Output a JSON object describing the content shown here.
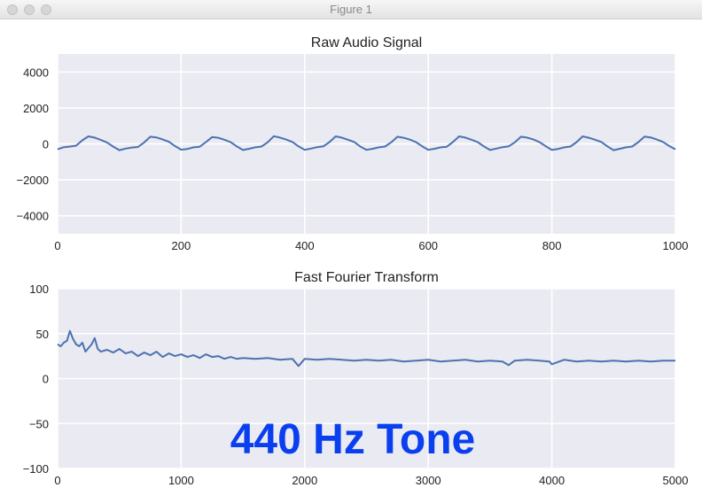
{
  "window": {
    "title": "Figure 1"
  },
  "overlay_text": "440 Hz Tone",
  "colors": {
    "line": "#4c72b0",
    "axes_bg": "#eaeaf2",
    "grid": "#ffffff",
    "overlay": "#0a3ff0"
  },
  "chart_data": [
    {
      "type": "line",
      "title": "Raw Audio Signal",
      "xlim": [
        0,
        1000
      ],
      "ylim": [
        -5000,
        5000
      ],
      "xticks": [
        0,
        200,
        400,
        600,
        800,
        1000
      ],
      "yticks": [
        4000,
        2000,
        0,
        -2000,
        -4000
      ],
      "xtick_labels": [
        "0",
        "200",
        "400",
        "600",
        "800",
        "1000"
      ],
      "ytick_labels": [
        "4000",
        "2000",
        "0",
        "−2000",
        "−4000"
      ],
      "grid": true,
      "series": [
        {
          "x": [
            0,
            10,
            20,
            30,
            40,
            50,
            60,
            70,
            80,
            90,
            100,
            110,
            120,
            130,
            140,
            150,
            160,
            170,
            180,
            190,
            200,
            210,
            220,
            230,
            240,
            250,
            260,
            270,
            280,
            290,
            300,
            310,
            320,
            330,
            340,
            350,
            360,
            370,
            380,
            390,
            400,
            410,
            420,
            430,
            440,
            450,
            460,
            470,
            480,
            490,
            500,
            510,
            520,
            530,
            540,
            550,
            560,
            570,
            580,
            590,
            600,
            610,
            620,
            630,
            640,
            650,
            660,
            670,
            680,
            690,
            700,
            710,
            720,
            730,
            740,
            750,
            760,
            770,
            780,
            790,
            800,
            810,
            820,
            830,
            840,
            850,
            860,
            870,
            880,
            890,
            900,
            910,
            920,
            930,
            940,
            950,
            960,
            970,
            980,
            990,
            1000
          ],
          "y": [
            -300,
            -180,
            -150,
            -100,
            200,
            420,
            350,
            220,
            80,
            -150,
            -350,
            -260,
            -200,
            -170,
            80,
            400,
            360,
            250,
            120,
            -120,
            -320,
            -280,
            -190,
            -160,
            100,
            380,
            340,
            230,
            100,
            -140,
            -340,
            -270,
            -190,
            -150,
            90,
            430,
            350,
            240,
            110,
            -140,
            -330,
            -260,
            -180,
            -140,
            100,
            420,
            350,
            230,
            110,
            -150,
            -330,
            -270,
            -190,
            -150,
            90,
            400,
            340,
            240,
            100,
            -130,
            -330,
            -270,
            -190,
            -160,
            110,
            420,
            350,
            230,
            100,
            -140,
            -340,
            -260,
            -180,
            -140,
            90,
            400,
            350,
            250,
            100,
            -130,
            -330,
            -280,
            -190,
            -150,
            100,
            420,
            340,
            230,
            110,
            -140,
            -350,
            -270,
            -190,
            -150,
            100,
            410,
            360,
            240,
            110,
            -120,
            -300
          ]
        }
      ]
    },
    {
      "type": "line",
      "title": "Fast Fourier Transform",
      "xlim": [
        0,
        5000
      ],
      "ylim": [
        -100,
        100
      ],
      "xticks": [
        0,
        1000,
        2000,
        3000,
        4000,
        5000
      ],
      "yticks": [
        100,
        50,
        0,
        -50,
        -100
      ],
      "xtick_labels": [
        "0",
        "1000",
        "2000",
        "3000",
        "4000",
        "5000"
      ],
      "ytick_labels": [
        "100",
        "50",
        "0",
        "−50",
        "−100"
      ],
      "grid": true,
      "series": [
        {
          "x": [
            0,
            25,
            50,
            75,
            100,
            125,
            150,
            175,
            200,
            225,
            250,
            275,
            300,
            325,
            350,
            400,
            450,
            500,
            550,
            600,
            650,
            700,
            750,
            800,
            850,
            900,
            950,
            1000,
            1050,
            1100,
            1150,
            1200,
            1250,
            1300,
            1350,
            1400,
            1450,
            1500,
            1600,
            1700,
            1800,
            1900,
            1950,
            2000,
            2100,
            2200,
            2300,
            2400,
            2500,
            2600,
            2700,
            2800,
            2900,
            3000,
            3100,
            3200,
            3300,
            3400,
            3500,
            3600,
            3650,
            3700,
            3800,
            3900,
            3980,
            4000,
            4100,
            4200,
            4300,
            4400,
            4500,
            4600,
            4700,
            4800,
            4900,
            5000
          ],
          "y": [
            38,
            36,
            40,
            42,
            53,
            44,
            38,
            36,
            40,
            30,
            34,
            38,
            45,
            33,
            30,
            32,
            29,
            33,
            28,
            30,
            25,
            29,
            26,
            30,
            24,
            28,
            25,
            27,
            24,
            26,
            23,
            27,
            24,
            25,
            22,
            24,
            22,
            23,
            22,
            23,
            21,
            22,
            14,
            22,
            21,
            22,
            21,
            20,
            21,
            20,
            21,
            19,
            20,
            21,
            19,
            20,
            21,
            19,
            20,
            19,
            15,
            20,
            21,
            20,
            19,
            16,
            21,
            19,
            20,
            19,
            20,
            19,
            20,
            19,
            20,
            20
          ]
        }
      ]
    }
  ]
}
